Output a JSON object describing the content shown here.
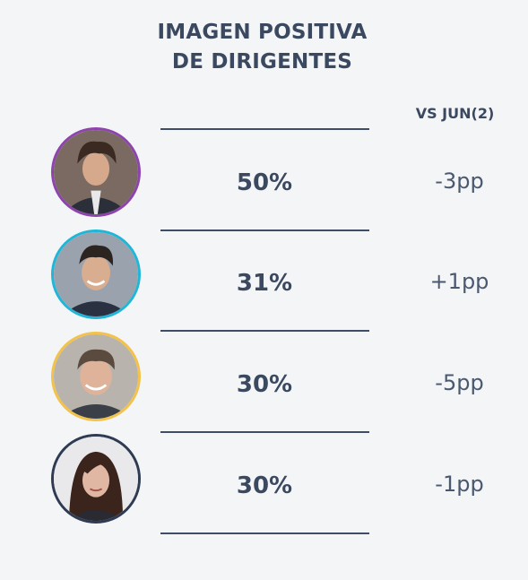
{
  "title_line1": "IMAGEN POSITIVA",
  "title_line2": "DE DIRIGENTES",
  "compare_header": "VS JUN(2)",
  "chart_data": {
    "type": "table",
    "title": "IMAGEN POSITIVA DE DIRIGENTES",
    "columns": [
      "",
      "VS JUN(2)"
    ],
    "rows": [
      {
        "value": 50,
        "value_label": "50%",
        "delta": -3,
        "delta_label": "-3pp",
        "ring_color": "#8e44ad"
      },
      {
        "value": 31,
        "value_label": "31%",
        "delta": 1,
        "delta_label": "+1pp",
        "ring_color": "#1fb6d8"
      },
      {
        "value": 30,
        "value_label": "30%",
        "delta": -5,
        "delta_label": "-5pp",
        "ring_color": "#f2c24a"
      },
      {
        "value": 30,
        "value_label": "30%",
        "delta": -1,
        "delta_label": "-1pp",
        "ring_color": "#2f3b52"
      }
    ]
  },
  "colors": {
    "text": "#3a4960",
    "divider": "#3f4e66",
    "background": "#f4f5f7"
  }
}
